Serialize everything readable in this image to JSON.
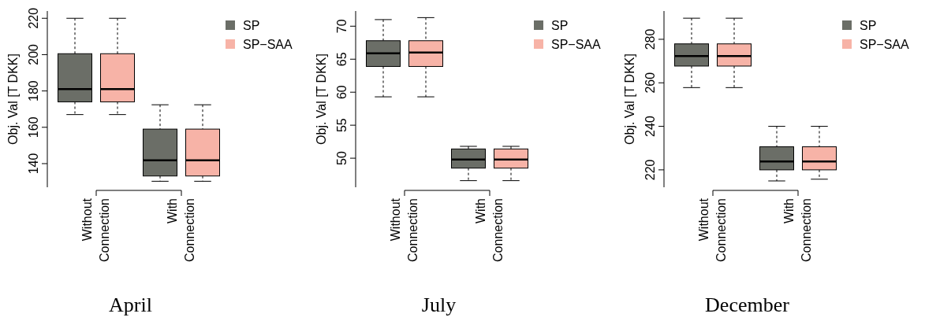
{
  "chart_data": [
    {
      "type": "box",
      "title": "April",
      "ylabel": "Obj. Val [T DKK]",
      "categories": [
        "Without Connection",
        "With Connection"
      ],
      "ylim": [
        127,
        224
      ],
      "yticks": [
        140,
        160,
        180,
        200,
        220
      ],
      "legend": "top right",
      "series": [
        {
          "name": "SP",
          "color": "#6b6e67",
          "boxes": [
            {
              "low": 167,
              "q1": 174,
              "median": 181,
              "q3": 200.5,
              "high": 220
            },
            {
              "low": 130.3,
              "q1": 133.2,
              "median": 141.8,
              "q3": 159,
              "high": 172.4
            }
          ]
        },
        {
          "name": "SP−SAA",
          "color": "#f7b3a7",
          "boxes": [
            {
              "low": 167,
              "q1": 174,
              "median": 181,
              "q3": 200.5,
              "high": 220
            },
            {
              "low": 130.3,
              "q1": 133.2,
              "median": 141.8,
              "q3": 159,
              "high": 172.4
            }
          ]
        }
      ]
    },
    {
      "type": "box",
      "title": "July",
      "ylabel": "Obj. Val [T DKK]",
      "categories": [
        "Without Connection",
        "With Connection"
      ],
      "ylim": [
        45.6,
        72.3
      ],
      "yticks": [
        50,
        55,
        60,
        65,
        70
      ],
      "legend": "top right",
      "series": [
        {
          "name": "SP",
          "color": "#6b6e67",
          "boxes": [
            {
              "low": 59.3,
              "q1": 63.9,
              "median": 65.9,
              "q3": 67.8,
              "high": 71
            },
            {
              "low": 46.6,
              "q1": 48.5,
              "median": 49.8,
              "q3": 51.4,
              "high": 51.8
            }
          ]
        },
        {
          "name": "SP−SAA",
          "color": "#f7b3a7",
          "boxes": [
            {
              "low": 59.3,
              "q1": 63.9,
              "median": 66,
              "q3": 67.8,
              "high": 71.3
            },
            {
              "low": 46.6,
              "q1": 48.5,
              "median": 49.8,
              "q3": 51.4,
              "high": 51.8
            }
          ]
        }
      ]
    },
    {
      "type": "box",
      "title": "December",
      "ylabel": "Obj. Val [T DKK]",
      "categories": [
        "Without Connection",
        "With Connection"
      ],
      "ylim": [
        212,
        293
      ],
      "yticks": [
        220,
        240,
        260,
        280
      ],
      "legend": "top right",
      "series": [
        {
          "name": "SP",
          "color": "#6b6e67",
          "boxes": [
            {
              "low": 257.8,
              "q1": 267.7,
              "median": 272.3,
              "q3": 277.9,
              "high": 289.7
            },
            {
              "low": 214.9,
              "q1": 220,
              "median": 223.8,
              "q3": 230.6,
              "high": 240
            }
          ]
        },
        {
          "name": "SP−SAA",
          "color": "#f7b3a7",
          "boxes": [
            {
              "low": 257.8,
              "q1": 267.7,
              "median": 272.3,
              "q3": 277.9,
              "high": 289.7
            },
            {
              "low": 215.7,
              "q1": 220,
              "median": 223.8,
              "q3": 230.6,
              "high": 240
            }
          ]
        }
      ]
    }
  ]
}
